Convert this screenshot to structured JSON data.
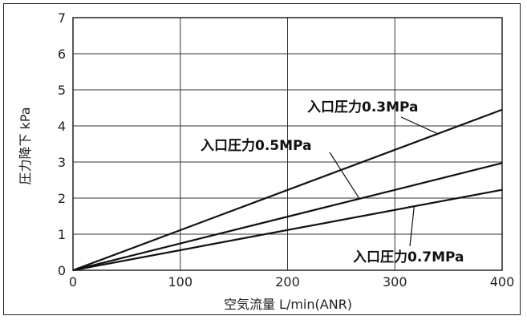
{
  "chart_data": {
    "type": "line",
    "xlabel": "空気流量 L/min(ANR)",
    "ylabel": "圧力降下 kPa",
    "xlim": [
      0,
      400
    ],
    "ylim": [
      0,
      7
    ],
    "x_ticks": [
      "0",
      "100",
      "200",
      "300",
      "400"
    ],
    "y_ticks": [
      "0",
      "1",
      "2",
      "3",
      "4",
      "5",
      "6",
      "7"
    ],
    "grid": true,
    "series": [
      {
        "name": "入口圧力0.3MPa",
        "x": [
          0,
          400
        ],
        "y": [
          0,
          4.45
        ]
      },
      {
        "name": "入口圧力0.5MPa",
        "x": [
          0,
          400
        ],
        "y": [
          0,
          2.97
        ]
      },
      {
        "name": "入口圧力0.7MPa",
        "x": [
          0,
          400
        ],
        "y": [
          0,
          2.23
        ]
      }
    ]
  }
}
